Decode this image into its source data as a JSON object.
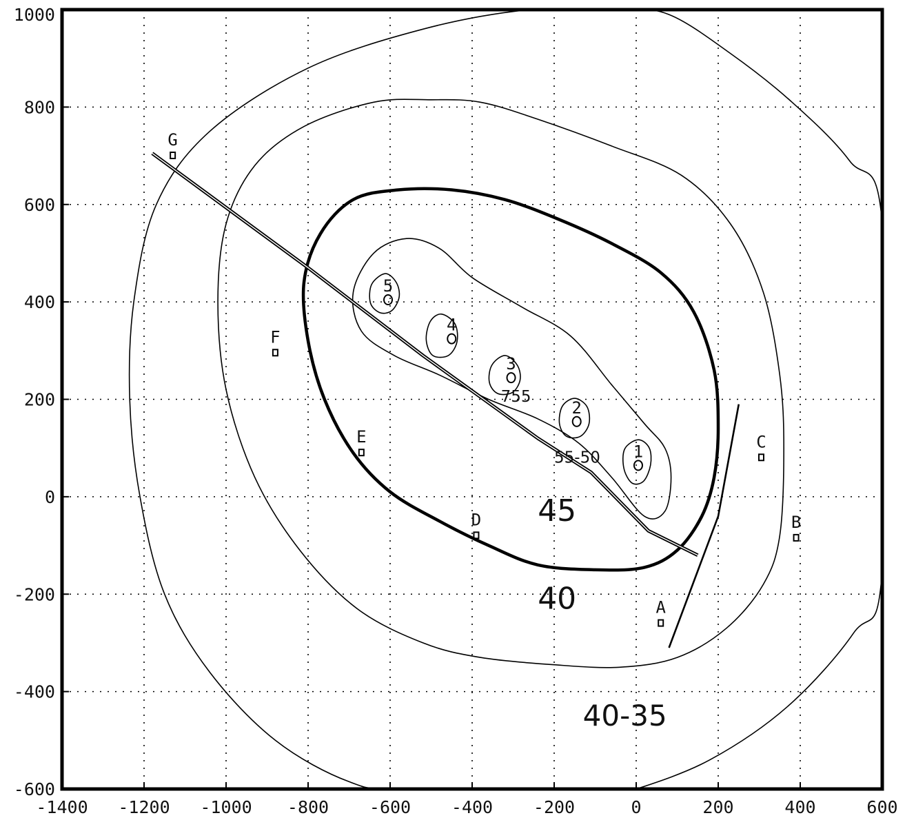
{
  "chart_data": {
    "type": "contour",
    "title": "",
    "xlabel": "",
    "ylabel": "",
    "xlim": [
      -1400,
      600
    ],
    "ylim": [
      -600,
      1000
    ],
    "x_ticks": [
      -1400,
      -1200,
      -1000,
      -800,
      -600,
      -400,
      -200,
      0,
      200,
      400,
      600
    ],
    "y_ticks": [
      -600,
      -400,
      -200,
      0,
      200,
      400,
      600,
      800,
      1000
    ],
    "grid": "dotted",
    "contours": [
      {
        "points": [
          [
            -40,
            1000
          ],
          [
            -260,
            1000
          ],
          [
            -520,
            960
          ],
          [
            -800,
            880
          ],
          [
            -1040,
            750
          ],
          [
            -1170,
            600
          ],
          [
            -1225,
            400
          ],
          [
            -1235,
            200
          ],
          [
            -1210,
            0
          ],
          [
            -1150,
            -200
          ],
          [
            -1040,
            -360
          ],
          [
            -880,
            -500
          ],
          [
            -700,
            -585
          ],
          [
            -560,
            -600
          ],
          [
            -40,
            -600
          ],
          [
            0,
            -600
          ],
          [
            180,
            -540
          ],
          [
            370,
            -430
          ],
          [
            530,
            -280
          ],
          [
            600,
            -150
          ],
          [
            600,
            560
          ],
          [
            520,
            690
          ],
          [
            380,
            810
          ],
          [
            230,
            910
          ],
          [
            80,
            990
          ]
        ]
      },
      {
        "points": [
          [
            -500,
            815
          ],
          [
            -640,
            810
          ],
          [
            -810,
            760
          ],
          [
            -930,
            680
          ],
          [
            -1000,
            560
          ],
          [
            -1020,
            400
          ],
          [
            -1000,
            220
          ],
          [
            -930,
            40
          ],
          [
            -820,
            -110
          ],
          [
            -680,
            -230
          ],
          [
            -520,
            -300
          ],
          [
            -380,
            -330
          ],
          [
            -200,
            -345
          ],
          [
            -40,
            -350
          ],
          [
            100,
            -330
          ],
          [
            220,
            -270
          ],
          [
            310,
            -180
          ],
          [
            350,
            -80
          ],
          [
            360,
            100
          ],
          [
            350,
            250
          ],
          [
            310,
            420
          ],
          [
            230,
            560
          ],
          [
            110,
            660
          ],
          [
            -60,
            720
          ],
          [
            -240,
            775
          ],
          [
            -380,
            810
          ]
        ]
      },
      {
        "points": [
          [
            -580,
            630
          ],
          [
            -690,
            610
          ],
          [
            -770,
            540
          ],
          [
            -810,
            440
          ],
          [
            -800,
            320
          ],
          [
            -760,
            200
          ],
          [
            -690,
            90
          ],
          [
            -600,
            10
          ],
          [
            -480,
            -50
          ],
          [
            -360,
            -100
          ],
          [
            -240,
            -140
          ],
          [
            -100,
            -150
          ],
          [
            20,
            -145
          ],
          [
            100,
            -110
          ],
          [
            160,
            -40
          ],
          [
            190,
            40
          ],
          [
            200,
            140
          ],
          [
            190,
            260
          ],
          [
            140,
            380
          ],
          [
            60,
            460
          ],
          [
            -60,
            520
          ],
          [
            -190,
            570
          ],
          [
            -320,
            610
          ],
          [
            -450,
            630
          ]
        ],
        "style": "heavy"
      },
      {
        "points": [
          [
            -560,
            530
          ],
          [
            -640,
            500
          ],
          [
            -690,
            420
          ],
          [
            -670,
            340
          ],
          [
            -590,
            290
          ],
          [
            -480,
            250
          ],
          [
            -360,
            200
          ],
          [
            -240,
            160
          ],
          [
            -140,
            110
          ],
          [
            -60,
            40
          ],
          [
            20,
            -40
          ],
          [
            70,
            -30
          ],
          [
            85,
            40
          ],
          [
            70,
            100
          ],
          [
            20,
            150
          ],
          [
            -60,
            230
          ],
          [
            -160,
            330
          ],
          [
            -280,
            390
          ],
          [
            -400,
            450
          ],
          [
            -480,
            510
          ]
        ]
      },
      {
        "points": [
          [
            -612,
            458
          ],
          [
            -585,
            440
          ],
          [
            -578,
            410
          ],
          [
            -596,
            382
          ],
          [
            -625,
            378
          ],
          [
            -648,
            398
          ],
          [
            -645,
            436
          ]
        ]
      },
      {
        "points": [
          [
            -475,
            375
          ],
          [
            -442,
            355
          ],
          [
            -437,
            318
          ],
          [
            -458,
            290
          ],
          [
            -496,
            290
          ],
          [
            -512,
            322
          ],
          [
            -502,
            360
          ]
        ]
      },
      {
        "points": [
          [
            -320,
            290
          ],
          [
            -290,
            270
          ],
          [
            -283,
            240
          ],
          [
            -302,
            214
          ],
          [
            -338,
            212
          ],
          [
            -358,
            235
          ],
          [
            -352,
            270
          ]
        ]
      },
      {
        "points": [
          [
            -150,
            202
          ],
          [
            -120,
            185
          ],
          [
            -115,
            150
          ],
          [
            -136,
            124
          ],
          [
            -170,
            124
          ],
          [
            -187,
            150
          ],
          [
            -180,
            186
          ]
        ]
      },
      {
        "points": [
          [
            5,
            117
          ],
          [
            32,
            100
          ],
          [
            35,
            65
          ],
          [
            18,
            32
          ],
          [
            -10,
            28
          ],
          [
            -30,
            58
          ],
          [
            -28,
            98
          ]
        ]
      }
    ],
    "fronts": [
      {
        "points": [
          [
            -1180,
            705
          ],
          [
            -800,
            470
          ],
          [
            -520,
            290
          ],
          [
            -240,
            120
          ],
          [
            -110,
            50
          ],
          [
            30,
            -70
          ],
          [
            150,
            -120
          ]
        ]
      },
      {
        "points": [
          [
            250,
            190
          ],
          [
            200,
            -40
          ],
          [
            80,
            -310
          ]
        ]
      }
    ],
    "stations": [
      {
        "label": "A",
        "x": 60,
        "y": -250
      },
      {
        "label": "B",
        "x": 390,
        "y": -75
      },
      {
        "label": "C",
        "x": 305,
        "y": 90
      },
      {
        "label": "D",
        "x": -390,
        "y": -70
      },
      {
        "label": "E",
        "x": -670,
        "y": 100
      },
      {
        "label": "F",
        "x": -880,
        "y": 305
      },
      {
        "label": "G",
        "x": -1130,
        "y": 710
      },
      {
        "label": "1",
        "x": 5,
        "y": 70
      },
      {
        "label": "2",
        "x": -145,
        "y": 160
      },
      {
        "label": "3",
        "x": -305,
        "y": 250
      },
      {
        "label": "4",
        "x": -450,
        "y": 330
      },
      {
        "label": "5",
        "x": -605,
        "y": 410
      }
    ],
    "annotations": [
      {
        "text": "55-50",
        "x": -200,
        "y": 70,
        "size": 23
      },
      {
        "text": "45",
        "x": -240,
        "y": -50,
        "size": 44
      },
      {
        "text": "40",
        "x": -240,
        "y": -230,
        "size": 44
      },
      {
        "text": "40-35",
        "x": -130,
        "y": -470,
        "size": 42
      },
      {
        "text": "755",
        "x": -330,
        "y": 195,
        "size": 23
      }
    ]
  }
}
